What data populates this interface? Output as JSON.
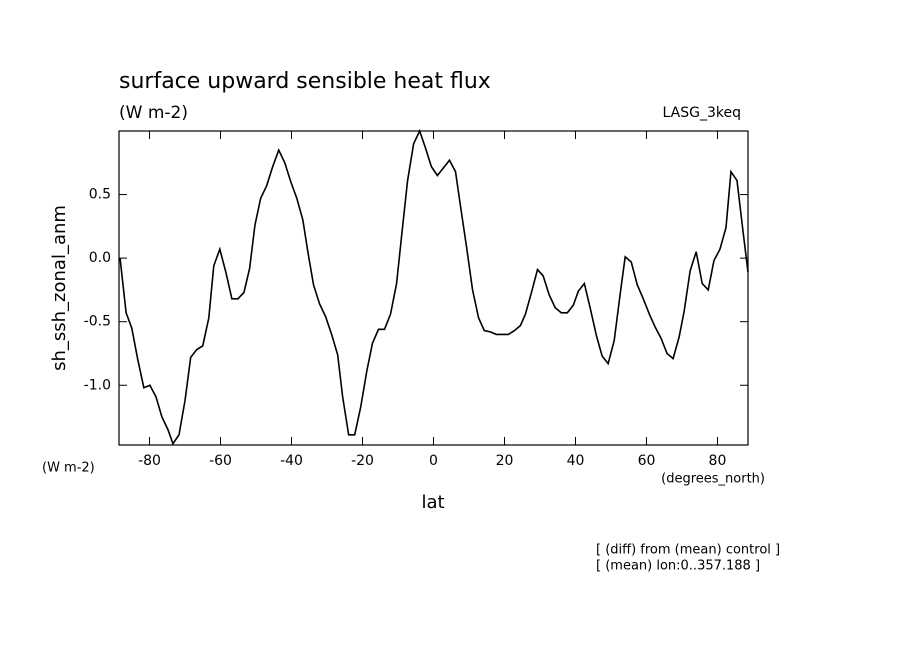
{
  "chart_data": {
    "type": "line",
    "title": "surface upward sensible heat flux",
    "subtitle": "(W m-2)",
    "source": "LASG_3keq",
    "ylabel": "sh_ssh_zonal_anm",
    "yunits": "(W m-2)",
    "xlabel": "lat",
    "xunits": "(degrees_north)",
    "notes": [
      "[ (diff) from (mean) control ]",
      "[ (mean) lon:0..357.188 ]"
    ],
    "color": "#000000",
    "xlim": [
      -88.6,
      88.6
    ],
    "ylim": [
      -1.47,
      1.0
    ],
    "xticks": [
      -80,
      -60,
      -40,
      -20,
      0,
      20,
      40,
      60,
      80
    ],
    "yticks": [
      {
        "value": -1.0,
        "label": "-1.0"
      },
      -0.5,
      {
        "value": 0,
        "label": "0.0"
      },
      0.5
    ],
    "x": [
      -88.3,
      -86.6,
      -85.0,
      -83.3,
      -81.6,
      -79.9,
      -78.2,
      -76.5,
      -74.8,
      -73.4,
      -71.7,
      -70.0,
      -68.4,
      -66.7,
      -65.0,
      -63.3,
      -61.9,
      -60.2,
      -58.5,
      -56.8,
      -55.1,
      -53.4,
      -51.8,
      -50.3,
      -48.7,
      -47.0,
      -45.3,
      -43.6,
      -41.9,
      -40.2,
      -38.5,
      -36.8,
      -35.4,
      -33.8,
      -32.1,
      -30.4,
      -28.7,
      -27.0,
      -25.6,
      -23.9,
      -22.2,
      -20.5,
      -18.8,
      -17.2,
      -15.5,
      -13.8,
      -12.1,
      -10.4,
      -9.0,
      -7.3,
      -5.6,
      -3.9,
      -2.3,
      -0.6,
      1.1,
      2.8,
      4.5,
      6.2,
      7.6,
      9.3,
      11.0,
      12.7,
      14.3,
      16.0,
      17.7,
      19.4,
      21.1,
      22.8,
      24.5,
      25.9,
      27.6,
      29.3,
      30.9,
      32.6,
      34.3,
      36.0,
      37.7,
      39.4,
      40.8,
      42.5,
      44.2,
      45.9,
      47.5,
      49.2,
      50.9,
      52.6,
      54.0,
      55.7,
      57.4,
      59.1,
      60.8,
      62.4,
      64.1,
      65.8,
      67.5,
      69.2,
      70.6,
      72.3,
      74.0,
      75.7,
      77.4,
      79.0,
      80.7,
      82.4,
      83.8,
      85.5,
      87.2,
      88.6
    ],
    "values": [
      0.0,
      -0.43,
      -0.55,
      -0.8,
      -1.02,
      -1.0,
      -1.09,
      -1.25,
      -1.35,
      -1.46,
      -1.39,
      -1.12,
      -0.78,
      -0.72,
      -0.69,
      -0.47,
      -0.06,
      0.07,
      -0.11,
      -0.32,
      -0.32,
      -0.27,
      -0.08,
      0.26,
      0.47,
      0.57,
      0.72,
      0.85,
      0.75,
      0.6,
      0.47,
      0.3,
      0.05,
      -0.21,
      -0.36,
      -0.46,
      -0.6,
      -0.76,
      -1.09,
      -1.39,
      -1.39,
      -1.17,
      -0.89,
      -0.67,
      -0.56,
      -0.56,
      -0.44,
      -0.2,
      0.17,
      0.61,
      0.9,
      1.0,
      0.87,
      0.72,
      0.65,
      0.71,
      0.77,
      0.68,
      0.41,
      0.09,
      -0.25,
      -0.47,
      -0.57,
      -0.58,
      -0.6,
      -0.6,
      -0.6,
      -0.57,
      -0.53,
      -0.44,
      -0.27,
      -0.09,
      -0.14,
      -0.29,
      -0.39,
      -0.43,
      -0.43,
      -0.37,
      -0.26,
      -0.2,
      -0.4,
      -0.61,
      -0.77,
      -0.83,
      -0.65,
      -0.28,
      0.01,
      -0.03,
      -0.21,
      -0.32,
      -0.44,
      -0.54,
      -0.63,
      -0.75,
      -0.79,
      -0.62,
      -0.42,
      -0.1,
      0.05,
      -0.2,
      -0.25,
      -0.02,
      0.07,
      0.24,
      0.68,
      0.61,
      0.21,
      -0.11
    ]
  }
}
